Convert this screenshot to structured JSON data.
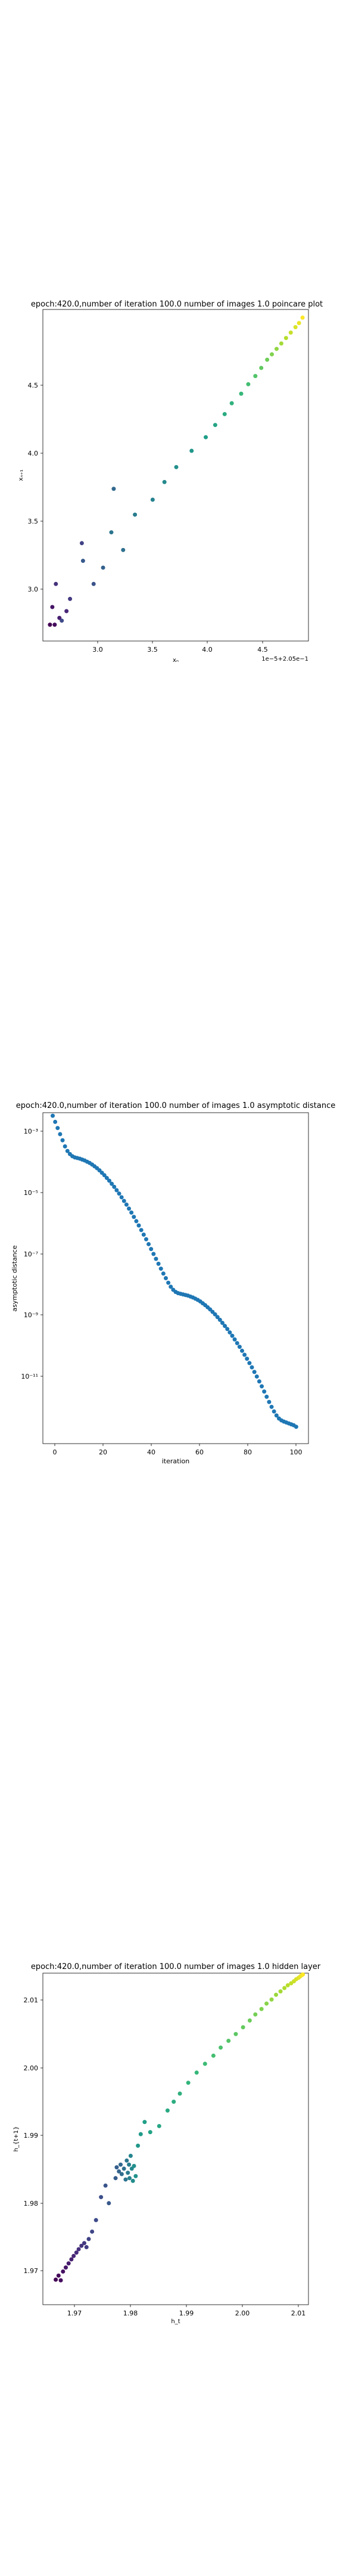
{
  "chart_data": [
    {
      "type": "scatter",
      "title": "epoch:420.0,number of iteration 100.0 number of images 1.0 poincare plot",
      "xlabel": "xₙ",
      "ylabel": "xₙ₊₁",
      "offset_label": "1e−5+2.05e−1",
      "xlim": [
        2.62,
        4.87
      ],
      "ylim": [
        2.53,
        4.97
      ],
      "xticks": [
        3.0,
        3.5,
        4.0,
        4.5
      ],
      "xtick_labels": [
        "3.0",
        "3.5",
        "4.0",
        "4.5"
      ],
      "yticks": [
        3.0,
        3.5,
        4.0,
        4.5
      ],
      "ytick_labels": [
        "3.0",
        "3.5",
        "4.0",
        "4.5"
      ],
      "colormap": "viridis",
      "x": [
        2.68,
        2.72,
        2.7,
        2.76,
        2.82,
        2.73,
        2.85,
        2.95,
        2.78,
        3.05,
        2.96,
        3.13,
        3.22,
        3.3,
        3.2,
        3.4,
        3.55,
        3.65,
        3.75,
        3.88,
        4.0,
        4.08,
        4.16,
        4.22,
        4.3,
        4.36,
        4.42,
        4.47,
        4.52,
        4.56,
        4.6,
        4.64,
        4.68,
        4.72,
        4.76,
        4.79,
        4.82
      ],
      "y": [
        2.65,
        2.65,
        2.78,
        2.7,
        2.75,
        2.95,
        2.84,
        3.25,
        2.68,
        2.95,
        3.12,
        3.07,
        3.65,
        3.2,
        3.33,
        3.46,
        3.57,
        3.7,
        3.81,
        3.93,
        4.03,
        4.12,
        4.2,
        4.28,
        4.35,
        4.42,
        4.48,
        4.54,
        4.6,
        4.64,
        4.68,
        4.72,
        4.76,
        4.8,
        4.84,
        4.87,
        4.91
      ]
    },
    {
      "type": "scatter",
      "title": "epoch:420.0,number of iteration 100.0  number of images 1.0 asymptotic distance",
      "xlabel": "iteration",
      "ylabel": "asymptotic distance",
      "xlim": [
        -4,
        104
      ],
      "ylim_log10": [
        -13.2,
        -2.4
      ],
      "xticks": [
        0,
        20,
        40,
        60,
        80,
        100
      ],
      "xtick_labels": [
        "0",
        "20",
        "40",
        "60",
        "80",
        "100"
      ],
      "yticks_log10": [
        -3,
        -5,
        -7,
        -9,
        -11
      ],
      "ytick_labels": [
        "10⁻³",
        "10⁻⁵",
        "10⁻⁷",
        "10⁻⁹",
        "10⁻¹¹"
      ],
      "color": "#1f77b4",
      "x": [
        0,
        1,
        2,
        3,
        4,
        5,
        6,
        7,
        8,
        9,
        10,
        11,
        12,
        13,
        14,
        15,
        16,
        17,
        18,
        19,
        20,
        21,
        22,
        23,
        24,
        25,
        26,
        27,
        28,
        29,
        30,
        31,
        32,
        33,
        34,
        35,
        36,
        37,
        38,
        39,
        40,
        41,
        42,
        43,
        44,
        45,
        46,
        47,
        48,
        49,
        50,
        51,
        52,
        53,
        54,
        55,
        56,
        57,
        58,
        59,
        60,
        61,
        62,
        63,
        64,
        65,
        66,
        67,
        68,
        69,
        70,
        71,
        72,
        73,
        74,
        75,
        76,
        77,
        78,
        79,
        80,
        81,
        82,
        83,
        84,
        85,
        86,
        87,
        88,
        89,
        90,
        91,
        92,
        93,
        94,
        95,
        96,
        97,
        98,
        99
      ],
      "y_log10": [
        -2.5,
        -2.7,
        -2.9,
        -3.1,
        -3.3,
        -3.5,
        -3.65,
        -3.75,
        -3.82,
        -3.86,
        -3.88,
        -3.9,
        -3.93,
        -3.96,
        -4.0,
        -4.04,
        -4.09,
        -4.15,
        -4.21,
        -4.28,
        -4.36,
        -4.44,
        -4.53,
        -4.62,
        -4.72,
        -4.82,
        -4.93,
        -5.04,
        -5.16,
        -5.28,
        -5.4,
        -5.53,
        -5.66,
        -5.8,
        -5.94,
        -6.08,
        -6.23,
        -6.38,
        -6.53,
        -6.69,
        -6.85,
        -7.01,
        -7.17,
        -7.33,
        -7.49,
        -7.65,
        -7.8,
        -7.95,
        -8.08,
        -8.18,
        -8.25,
        -8.29,
        -8.31,
        -8.33,
        -8.35,
        -8.37,
        -8.4,
        -8.43,
        -8.47,
        -8.51,
        -8.56,
        -8.62,
        -8.68,
        -8.75,
        -8.82,
        -8.9,
        -8.98,
        -9.07,
        -9.16,
        -9.26,
        -9.36,
        -9.46,
        -9.57,
        -9.68,
        -9.8,
        -9.92,
        -10.04,
        -10.17,
        -10.3,
        -10.43,
        -10.57,
        -10.71,
        -10.86,
        -11.01,
        -11.17,
        -11.33,
        -11.5,
        -11.67,
        -11.84,
        -12.0,
        -12.15,
        -12.28,
        -12.38,
        -12.44,
        -12.48,
        -12.51,
        -12.54,
        -12.57,
        -12.6,
        -12.65
      ]
    },
    {
      "type": "scatter",
      "title": "epoch:420.0,number of iteration 100.0  number of images 1.0 hidden layer",
      "xlabel": "h_t",
      "ylabel": "h_{t+1}",
      "xlim": [
        1.964,
        2.0115
      ],
      "ylim": [
        1.9625,
        2.0115
      ],
      "xticks": [
        1.97,
        1.98,
        1.99,
        2.0,
        2.01
      ],
      "xtick_labels": [
        "1.97",
        "1.98",
        "1.99",
        "2.00",
        "2.01"
      ],
      "yticks": [
        1.97,
        1.98,
        1.99,
        2.0,
        2.01
      ],
      "ytick_labels": [
        "1.97",
        "1.98",
        "1.99",
        "2.00",
        "2.01"
      ],
      "colormap": "viridis",
      "x": [
        1.9663,
        1.9668,
        1.9672,
        1.9676,
        1.9681,
        1.9686,
        1.9691,
        1.9695,
        1.97,
        1.9704,
        1.9709,
        1.9714,
        1.9718,
        1.9722,
        1.9728,
        1.9735,
        1.9744,
        1.9752,
        1.9758,
        1.977,
        1.9772,
        1.9776,
        1.9779,
        1.9781,
        1.9785,
        1.9788,
        1.979,
        1.9792,
        1.9794,
        1.9795,
        1.9797,
        1.9799,
        1.9801,
        1.9803,
        1.9806,
        1.981,
        1.9815,
        1.9822,
        1.9832,
        1.9848,
        1.9863,
        1.9874,
        1.9885,
        1.99,
        1.9915,
        1.993,
        1.9945,
        1.9958,
        1.9972,
        1.9985,
        1.9998,
        2.001,
        2.002,
        2.0031,
        2.004,
        2.0049,
        2.0057,
        2.0065,
        2.0072,
        2.0078,
        2.0084,
        2.0089,
        2.0093,
        2.0097,
        2.01,
        2.0103,
        2.0105
      ],
      "y": [
        1.9662,
        1.9668,
        1.9661,
        1.9674,
        1.968,
        1.9686,
        1.9692,
        1.9697,
        1.9702,
        1.9707,
        1.9712,
        1.9716,
        1.971,
        1.9722,
        1.9733,
        1.975,
        1.9784,
        1.9801,
        1.9775,
        1.9812,
        1.9828,
        1.9822,
        1.9832,
        1.9818,
        1.9826,
        1.981,
        1.9838,
        1.982,
        1.9832,
        1.9812,
        1.9845,
        1.9826,
        1.9808,
        1.983,
        1.9815,
        1.986,
        1.9877,
        1.9895,
        1.988,
        1.9889,
        1.9912,
        1.9925,
        1.9937,
        1.9953,
        1.9968,
        1.9981,
        1.9993,
        2.0005,
        2.0015,
        2.0025,
        2.0035,
        2.0045,
        2.0054,
        2.0062,
        2.007,
        2.0076,
        2.0083,
        2.0088,
        2.0093,
        2.0097,
        2.01,
        2.0103,
        2.0106,
        2.0108,
        2.011,
        2.0112,
        2.0113
      ]
    }
  ]
}
